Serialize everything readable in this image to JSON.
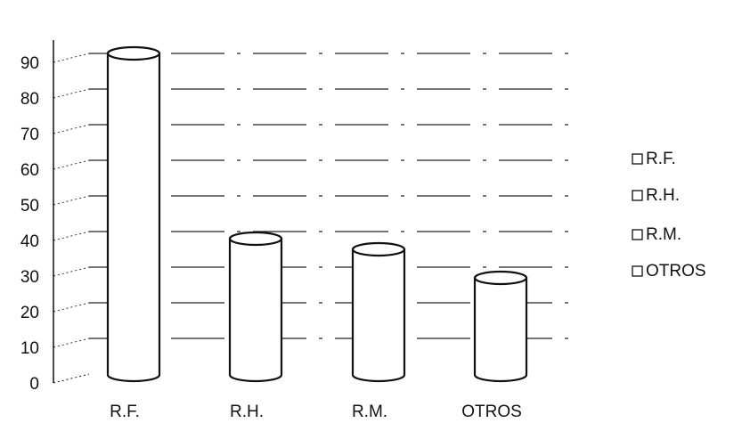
{
  "chart_data": {
    "type": "bar",
    "style": "3d-cylinder",
    "categories": [
      "R.F.",
      "R.H.",
      "R.M.",
      "OTROS"
    ],
    "values": [
      93,
      41,
      38,
      30
    ],
    "ylim": [
      0,
      90
    ],
    "yticks": [
      "0",
      "10",
      "20",
      "30",
      "40",
      "50",
      "60",
      "70",
      "80",
      "90"
    ],
    "legend": {
      "placement": "right",
      "entries": [
        "R.F.",
        "R.H.",
        "R.M.",
        "OTROS"
      ]
    },
    "grid": true,
    "bar_fill": "#ffffff",
    "line_color": "#111111"
  }
}
